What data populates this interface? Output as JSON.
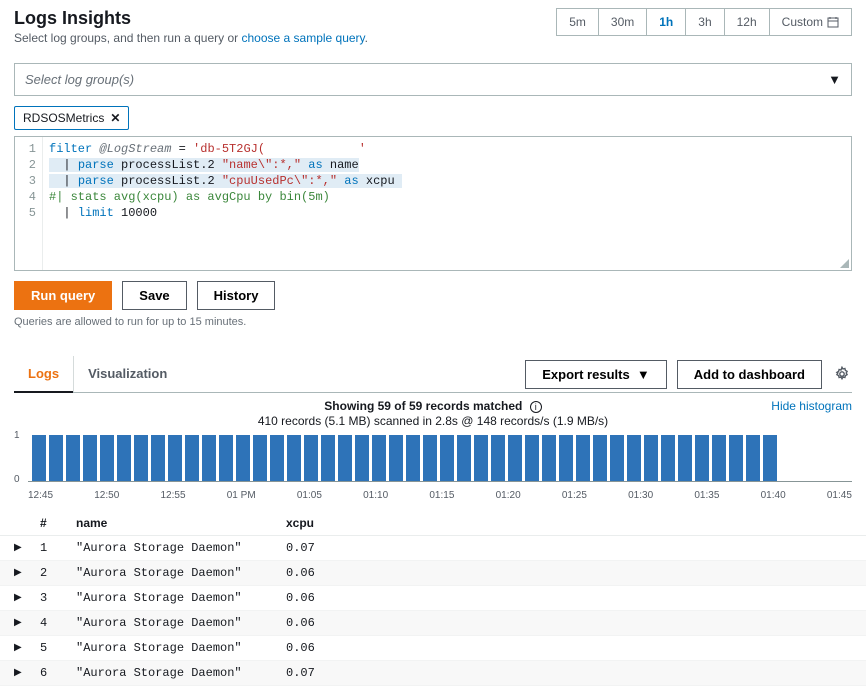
{
  "header": {
    "title": "Logs Insights",
    "subtitle_prefix": "Select log groups, and then run a query or ",
    "subtitle_link": "choose a sample query",
    "subtitle_suffix": "."
  },
  "time_range": {
    "options": [
      "5m",
      "30m",
      "1h",
      "3h",
      "12h"
    ],
    "custom_label": "Custom",
    "active": "1h"
  },
  "log_group_select": {
    "placeholder": "Select log group(s)"
  },
  "chips": [
    {
      "label": "RDSOSMetrics"
    }
  ],
  "editor": {
    "lines": [
      {
        "n": 1,
        "raw": "filter @LogStream = 'db-5T2GJ("
      },
      {
        "n": 2,
        "raw": "  | parse processList.2 \"name\\\":*,\" as name"
      },
      {
        "n": 3,
        "raw": "  | parse processList.2 \"cpuUsedPc\\\":*,\" as xcpu"
      },
      {
        "n": 4,
        "raw": "#| stats avg(xcpu) as avgCpu by bin(5m)"
      },
      {
        "n": 5,
        "raw": "  | limit 10000"
      }
    ]
  },
  "buttons": {
    "run": "Run query",
    "save": "Save",
    "history": "History"
  },
  "hint": "Queries are allowed to run for up to 15 minutes.",
  "tabs": {
    "logs": "Logs",
    "viz": "Visualization",
    "export": "Export results",
    "add_dash": "Add to dashboard"
  },
  "histogram": {
    "top_line": "Showing 59 of 59 records matched",
    "sub_line": "410 records (5.1 MB) scanned in 2.8s @ 148 records/s (1.9 MB/s)",
    "hide_label": "Hide histogram",
    "y_max": "1",
    "y_min": "0",
    "bar_count": 44,
    "bar_color": "#2e73b8",
    "x_labels": [
      "12:45",
      "12:50",
      "12:55",
      "01 PM",
      "01:05",
      "01:10",
      "01:15",
      "01:20",
      "01:25",
      "01:30",
      "01:35",
      "01:40",
      "01:45"
    ]
  },
  "table": {
    "columns": [
      "#",
      "name",
      "xcpu"
    ],
    "rows": [
      {
        "idx": 1,
        "name": "\"Aurora Storage Daemon\"",
        "xcpu": "0.07"
      },
      {
        "idx": 2,
        "name": "\"Aurora Storage Daemon\"",
        "xcpu": "0.06"
      },
      {
        "idx": 3,
        "name": "\"Aurora Storage Daemon\"",
        "xcpu": "0.06"
      },
      {
        "idx": 4,
        "name": "\"Aurora Storage Daemon\"",
        "xcpu": "0.06"
      },
      {
        "idx": 5,
        "name": "\"Aurora Storage Daemon\"",
        "xcpu": "0.06"
      },
      {
        "idx": 6,
        "name": "\"Aurora Storage Daemon\"",
        "xcpu": "0.07"
      }
    ]
  },
  "colors": {
    "accent_orange": "#ec7211",
    "link_blue": "#0073bb",
    "bar_blue": "#2e73b8",
    "border_gray": "#aab7b8"
  }
}
